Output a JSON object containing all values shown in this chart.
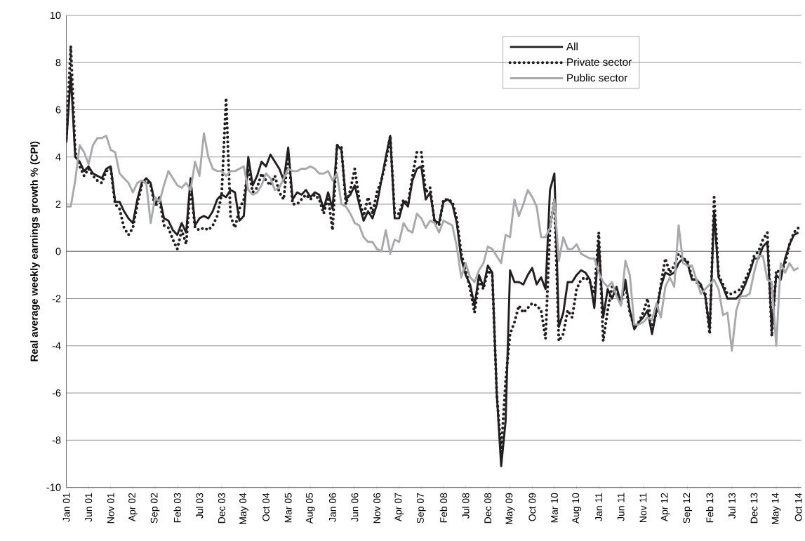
{
  "chart_data": {
    "type": "line",
    "ylabel": "Real average weekly earnings growth %  (CPI)",
    "categories": [
      "Jan 01",
      null,
      null,
      null,
      null,
      "Jun 01",
      null,
      null,
      null,
      null,
      "Nov 01",
      null,
      null,
      null,
      null,
      "Apr 02",
      null,
      null,
      null,
      null,
      "Sep 02",
      null,
      null,
      null,
      null,
      "Feb 03",
      null,
      null,
      null,
      null,
      "Jul 03",
      null,
      null,
      null,
      null,
      "Dec 03",
      null,
      null,
      null,
      null,
      "May 04",
      null,
      null,
      null,
      null,
      "Oct 04",
      null,
      null,
      null,
      null,
      "Mar 05",
      null,
      null,
      null,
      null,
      "Aug 05",
      null,
      null,
      null,
      null,
      "Jan 06",
      null,
      null,
      null,
      null,
      "Jun 06",
      null,
      null,
      null,
      null,
      "Nov 06",
      null,
      null,
      null,
      null,
      "Apr 07",
      null,
      null,
      null,
      null,
      "Sep 07",
      null,
      null,
      null,
      null,
      "Feb 08",
      null,
      null,
      null,
      null,
      "Jul 08",
      null,
      null,
      null,
      null,
      "Dec 08",
      null,
      null,
      null,
      null,
      "May 09",
      null,
      null,
      null,
      null,
      "Oct 09",
      null,
      null,
      null,
      null,
      "Mar 10",
      null,
      null,
      null,
      null,
      "Aug 10",
      null,
      null,
      null,
      null,
      "Jan 11",
      null,
      null,
      null,
      null,
      "Jun 11",
      null,
      null,
      null,
      null,
      "Nov 11",
      null,
      null,
      null,
      null,
      "Apr 12",
      null,
      null,
      null,
      null,
      "Sep 12",
      null,
      null,
      null,
      null,
      "Feb 13",
      null,
      null,
      null,
      null,
      "Jul 13",
      null,
      null,
      null,
      null,
      "Dec 13",
      null,
      null,
      null,
      null,
      "May 14",
      null,
      null,
      null,
      null,
      "Oct 14"
    ],
    "series": [
      {
        "name": "All",
        "color": "#231f20",
        "line_style": "solid",
        "values": [
          4.6,
          7.5,
          4.0,
          3.8,
          3.4,
          3.6,
          3.3,
          3.2,
          3.1,
          3.5,
          3.6,
          2.1,
          2.1,
          1.7,
          1.4,
          1.2,
          2.2,
          2.9,
          3.1,
          2.9,
          2.0,
          2.3,
          1.4,
          1.3,
          0.9,
          0.7,
          1.2,
          0.8,
          3.1,
          1.1,
          1.4,
          1.5,
          1.4,
          1.7,
          2.2,
          2.4,
          2.3,
          2.6,
          2.5,
          1.3,
          1.5,
          4.0,
          2.8,
          3.2,
          3.8,
          3.6,
          4.1,
          3.8,
          3.5,
          3.0,
          4.4,
          2.2,
          2.5,
          2.4,
          2.6,
          2.3,
          2.5,
          2.4,
          1.8,
          2.5,
          1.8,
          4.5,
          4.3,
          2.2,
          2.4,
          2.8,
          2.0,
          1.3,
          1.7,
          1.4,
          2.0,
          3.0,
          4.0,
          4.9,
          1.4,
          1.4,
          2.1,
          1.9,
          3.0,
          3.5,
          3.6,
          2.2,
          2.5,
          1.3,
          1.2,
          2.1,
          2.2,
          2.0,
          1.2,
          -0.3,
          -1.0,
          -1.4,
          -2.3,
          -1.0,
          -1.5,
          -0.6,
          -0.9,
          -6.0,
          -9.1,
          -7.2,
          -0.8,
          -1.3,
          -1.3,
          -1.4,
          -1.0,
          -0.7,
          -1.4,
          -1.1,
          -1.6,
          2.6,
          3.3,
          -3.2,
          -2.6,
          -1.3,
          -1.3,
          -1.0,
          -0.8,
          -0.9,
          -1.2,
          -2.4,
          0.4,
          -2.8,
          -1.6,
          -2.0,
          -1.5,
          -2.2,
          -1.2,
          -2.5,
          -3.3,
          -3.0,
          -2.8,
          -2.5,
          -3.5,
          -2.5,
          -1.5,
          -0.9,
          -1.0,
          -0.9,
          -0.5,
          -0.3,
          -0.5,
          -1.2,
          -1.2,
          -1.4,
          -1.9,
          -3.3,
          1.7,
          -1.1,
          -1.5,
          -2.0,
          -2.0,
          -2.0,
          -1.8,
          -1.4,
          -0.9,
          -0.3,
          -0.3,
          0.2,
          0.4,
          -3.3,
          -1.0,
          -1.2,
          -0.3,
          0.3,
          0.7,
          0.8
        ]
      },
      {
        "name": "Private sector",
        "color": "#231f20",
        "line_style": "dotted",
        "values": [
          4.8,
          8.7,
          4.2,
          3.6,
          3.2,
          3.5,
          3.2,
          3.0,
          2.9,
          3.4,
          3.5,
          2.0,
          1.8,
          1.0,
          0.7,
          1.0,
          2.0,
          2.8,
          3.0,
          2.8,
          1.9,
          2.2,
          1.1,
          1.0,
          0.5,
          0.1,
          0.9,
          0.3,
          2.8,
          1.0,
          0.9,
          1.0,
          0.9,
          1.1,
          1.5,
          2.4,
          6.5,
          1.5,
          1.0,
          1.8,
          2.2,
          3.5,
          2.5,
          2.7,
          3.3,
          3.0,
          2.8,
          3.2,
          2.5,
          2.2,
          4.2,
          2.0,
          2.0,
          2.2,
          2.4,
          2.2,
          2.4,
          2.2,
          1.6,
          2.3,
          0.9,
          4.5,
          4.4,
          2.0,
          2.6,
          3.5,
          2.2,
          1.5,
          2.3,
          1.6,
          2.5,
          3.0,
          3.8,
          4.9,
          1.6,
          1.6,
          2.2,
          2.0,
          3.2,
          4.2,
          4.2,
          2.5,
          2.7,
          1.2,
          1.1,
          2.2,
          2.2,
          2.1,
          1.4,
          -0.1,
          -0.8,
          -1.6,
          -2.6,
          -1.2,
          -1.6,
          -0.8,
          -1.0,
          -6.0,
          -8.5,
          -5.5,
          -3.5,
          -3.0,
          -2.3,
          -2.6,
          -2.4,
          -2.2,
          -2.3,
          -2.5,
          -3.7,
          1.0,
          2.2,
          -3.8,
          -3.5,
          -2.5,
          -2.8,
          -1.6,
          -1.2,
          -1.1,
          -1.3,
          -1.8,
          0.8,
          -3.8,
          -2.5,
          -1.5,
          -1.8,
          -2.2,
          -1.4,
          -2.6,
          -3.2,
          -3.0,
          -2.6,
          -2.0,
          -3.3,
          -2.6,
          -1.4,
          -0.3,
          -0.9,
          -0.6,
          -0.1,
          -0.3,
          -0.4,
          -1.1,
          -1.3,
          -1.5,
          -1.8,
          -3.5,
          2.3,
          -1.0,
          -1.4,
          -1.8,
          -1.8,
          -1.7,
          -1.6,
          -1.2,
          -0.8,
          -0.2,
          0.0,
          0.5,
          0.8,
          -3.6,
          -0.8,
          -0.9,
          -0.5,
          0.3,
          0.8,
          1.0
        ]
      },
      {
        "name": "Public sector",
        "color": "#a7a9ac",
        "line_style": "solid",
        "values": [
          1.9,
          1.9,
          3.0,
          4.5,
          4.2,
          3.7,
          4.5,
          4.8,
          4.8,
          4.9,
          4.3,
          4.2,
          3.3,
          3.1,
          2.9,
          2.5,
          2.9,
          3.0,
          2.9,
          1.2,
          2.3,
          2.1,
          2.8,
          3.4,
          3.1,
          2.8,
          2.7,
          2.9,
          2.6,
          3.8,
          3.2,
          5.0,
          4.0,
          3.5,
          3.4,
          3.4,
          3.2,
          3.4,
          3.4,
          3.5,
          3.6,
          2.6,
          2.4,
          2.5,
          2.8,
          3.3,
          3.1,
          2.6,
          2.7,
          3.1,
          3.5,
          3.4,
          3.4,
          3.5,
          3.5,
          3.6,
          3.5,
          3.3,
          3.3,
          3.4,
          3.0,
          3.3,
          2.0,
          1.9,
          1.6,
          1.2,
          1.1,
          0.6,
          0.4,
          0.4,
          0.1,
          0.0,
          0.9,
          -0.1,
          0.5,
          0.4,
          1.2,
          0.9,
          0.8,
          1.6,
          1.4,
          1.0,
          1.3,
          1.2,
          0.8,
          1.3,
          1.2,
          1.1,
          0.2,
          -1.1,
          -0.5,
          -1.1,
          -1.3,
          -0.8,
          -0.5,
          0.2,
          0.1,
          -0.2,
          -0.5,
          0.7,
          0.6,
          2.2,
          1.5,
          2.0,
          2.6,
          2.3,
          1.9,
          0.6,
          0.6,
          1.0,
          2.2,
          -0.4,
          0.6,
          0.1,
          0.1,
          0.3,
          -0.1,
          -0.2,
          -0.3,
          -0.3,
          -0.9,
          -1.3,
          -1.5,
          -1.3,
          -1.9,
          -2.3,
          -0.4,
          -1.0,
          -3.1,
          -3.1,
          -3.0,
          -2.8,
          -2.9,
          -2.2,
          -2.8,
          -1.5,
          -1.1,
          -1.5,
          1.1,
          -0.5,
          -0.6,
          -0.6,
          -1.2,
          -1.8,
          -1.6,
          -1.4,
          -1.2,
          -1.6,
          -2.7,
          -2.6,
          -4.2,
          -2.5,
          -1.9,
          -1.9,
          -1.8,
          -0.9,
          -0.2,
          -0.2,
          -1.2,
          -1.3,
          -4.0,
          -0.5,
          -0.9,
          -0.5,
          -0.8,
          -0.7
        ]
      }
    ],
    "ylim": [
      -10,
      10
    ],
    "yticks": [
      -10,
      -8,
      -6,
      -4,
      -2,
      0,
      2,
      4,
      6,
      8,
      10
    ],
    "grid": "y",
    "legend": "top right",
    "marker": "none"
  }
}
